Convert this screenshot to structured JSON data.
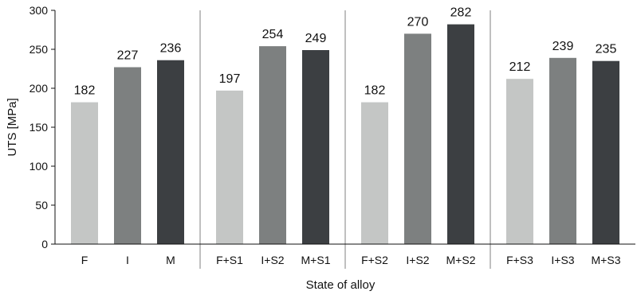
{
  "chart_data": {
    "type": "bar",
    "title": "",
    "xlabel": "State of alloy",
    "ylabel": "UTS  [MPa]",
    "ylim": [
      0,
      300
    ],
    "yticks": [
      0,
      50,
      100,
      150,
      200,
      250,
      300
    ],
    "grid": false,
    "legend": "none",
    "categories": [
      "F",
      "I",
      "M",
      "F+S1",
      "I+S2",
      "M+S1",
      "F+S2",
      "I+S2",
      "M+S2",
      "F+S3",
      "I+S3",
      "M+S3"
    ],
    "values": [
      182,
      227,
      236,
      197,
      254,
      249,
      182,
      270,
      282,
      212,
      239,
      235
    ],
    "data_labels": [
      "182",
      "227",
      "236",
      "197",
      "254",
      "249",
      "182",
      "270",
      "282",
      "212",
      "239",
      "235"
    ],
    "groups": [
      {
        "categories": [
          "F",
          "I",
          "M"
        ]
      },
      {
        "categories": [
          "F+S1",
          "I+S2",
          "M+S1"
        ]
      },
      {
        "categories": [
          "F+S2",
          "I+S2",
          "M+S2"
        ]
      },
      {
        "categories": [
          "F+S3",
          "I+S3",
          "M+S3"
        ]
      }
    ],
    "bar_colors": [
      "#c4c6c5",
      "#7d8080",
      "#3c3f42"
    ]
  }
}
